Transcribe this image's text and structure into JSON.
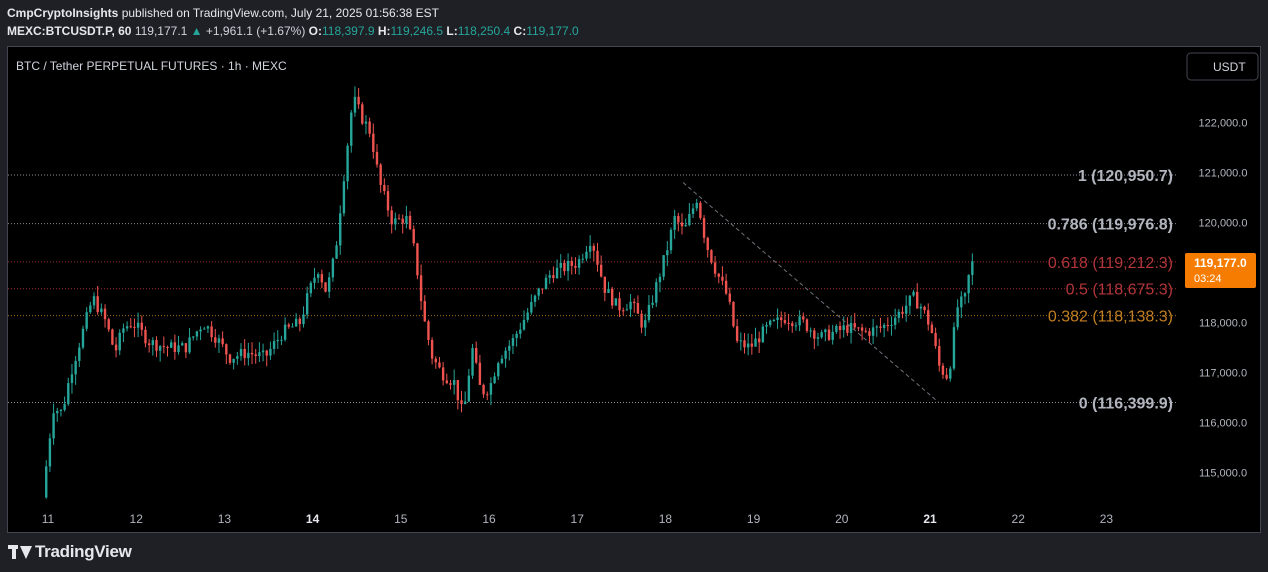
{
  "header": {
    "author": "CmpCryptoInsights",
    "published_text": "published on TradingView.com, July 21, 2025 01:56:38 EST",
    "symbol": "MEXC:BTCUSDT.P, 60",
    "last": "119,177.1",
    "change_arrow": "▲",
    "change": "+1,961.1 (+1.67%)",
    "o_label": "O:",
    "o_value": "118,397.9",
    "h_label": "H:",
    "h_value": "119,246.5",
    "l_label": "L:",
    "l_value": "118,250.4",
    "c_label": "C:",
    "c_value": "119,177.0"
  },
  "chart_title": "BTC / Tether PERPETUAL FUTURES · 1h · MEXC",
  "currency_button": "USDT",
  "price_tag": {
    "value": "119,177.0",
    "countdown": "03:24"
  },
  "footer": {
    "brand": "TradingView"
  },
  "colors": {
    "up": "#26a69a",
    "down": "#ef5350",
    "grey_level": "#b2b5be",
    "red_level": "#b2363b",
    "orange_level": "#c47f22",
    "tag": "#f57c00"
  },
  "chart_data": {
    "type": "candlestick",
    "interval": "1h",
    "y_ticks": [
      {
        "value": 115000,
        "label": "115,000.0"
      },
      {
        "value": 116000,
        "label": "116,000.0"
      },
      {
        "value": 117000,
        "label": "117,000.0"
      },
      {
        "value": 118000,
        "label": "118,000.0"
      },
      {
        "value": 120000,
        "label": "120,000.0"
      },
      {
        "value": 121000,
        "label": "121,000.0"
      },
      {
        "value": 122000,
        "label": "122,000.0"
      }
    ],
    "x_ticks": [
      {
        "day": 11,
        "label": "11",
        "bold": false
      },
      {
        "day": 12,
        "label": "12",
        "bold": false
      },
      {
        "day": 13,
        "label": "13",
        "bold": false
      },
      {
        "day": 14,
        "label": "14",
        "bold": true
      },
      {
        "day": 15,
        "label": "15",
        "bold": false
      },
      {
        "day": 16,
        "label": "16",
        "bold": false
      },
      {
        "day": 17,
        "label": "17",
        "bold": false
      },
      {
        "day": 18,
        "label": "18",
        "bold": false
      },
      {
        "day": 19,
        "label": "19",
        "bold": false
      },
      {
        "day": 20,
        "label": "20",
        "bold": false
      },
      {
        "day": 21,
        "label": "21",
        "bold": true
      },
      {
        "day": 22,
        "label": "22",
        "bold": false
      },
      {
        "day": 23,
        "label": "23",
        "bold": false
      }
    ],
    "fib_levels": [
      {
        "ratio": "1",
        "price": 120950.7,
        "label": "1 (120,950.7)",
        "style": "grey"
      },
      {
        "ratio": "0.786",
        "price": 119976.8,
        "label": "0.786 (119,976.8)",
        "style": "grey"
      },
      {
        "ratio": "0.618",
        "price": 119212.3,
        "label": "0.618 (119,212.3)",
        "style": "red"
      },
      {
        "ratio": "0.5",
        "price": 118675.3,
        "label": "0.5 (118,675.3)",
        "style": "red"
      },
      {
        "ratio": "0.382",
        "price": 118138.3,
        "label": "0.382 (118,138.3)",
        "style": "orange"
      },
      {
        "ratio": "0",
        "price": 116399.9,
        "label": "0 (116,399.9)",
        "style": "grey"
      }
    ],
    "trend_line": {
      "from": {
        "day": 18.2,
        "price": 120800
      },
      "to": {
        "day": 21.1,
        "price": 116400
      }
    },
    "price_path": [
      [
        10.98,
        114500
      ],
      [
        11.1,
        116300
      ],
      [
        11.2,
        116200
      ],
      [
        11.3,
        117000
      ],
      [
        11.45,
        117900
      ],
      [
        11.55,
        118500
      ],
      [
        11.7,
        118000
      ],
      [
        11.8,
        117400
      ],
      [
        11.9,
        117900
      ],
      [
        12.0,
        118000
      ],
      [
        12.2,
        117600
      ],
      [
        12.4,
        117500
      ],
      [
        12.6,
        117500
      ],
      [
        12.8,
        118000
      ],
      [
        12.95,
        117700
      ],
      [
        13.1,
        117300
      ],
      [
        13.3,
        117400
      ],
      [
        13.5,
        117300
      ],
      [
        13.7,
        117800
      ],
      [
        13.9,
        118000
      ],
      [
        14.0,
        118600
      ],
      [
        14.1,
        119100
      ],
      [
        14.2,
        118600
      ],
      [
        14.3,
        119400
      ],
      [
        14.4,
        121000
      ],
      [
        14.5,
        122500
      ],
      [
        14.6,
        122100
      ],
      [
        14.7,
        121800
      ],
      [
        14.8,
        120800
      ],
      [
        14.95,
        120000
      ],
      [
        15.1,
        120100
      ],
      [
        15.2,
        119400
      ],
      [
        15.3,
        118100
      ],
      [
        15.4,
        117300
      ],
      [
        15.5,
        117000
      ],
      [
        15.65,
        116800
      ],
      [
        15.75,
        116100
      ],
      [
        15.85,
        117500
      ],
      [
        15.95,
        116600
      ],
      [
        16.05,
        116700
      ],
      [
        16.15,
        117300
      ],
      [
        16.3,
        117600
      ],
      [
        16.45,
        118100
      ],
      [
        16.6,
        118600
      ],
      [
        16.75,
        119000
      ],
      [
        16.9,
        119100
      ],
      [
        17.05,
        119200
      ],
      [
        17.2,
        119700
      ],
      [
        17.35,
        118700
      ],
      [
        17.5,
        118300
      ],
      [
        17.65,
        118400
      ],
      [
        17.8,
        117900
      ],
      [
        17.95,
        118800
      ],
      [
        18.05,
        119400
      ],
      [
        18.15,
        120100
      ],
      [
        18.25,
        119800
      ],
      [
        18.4,
        120500
      ],
      [
        18.5,
        119600
      ],
      [
        18.6,
        119100
      ],
      [
        18.75,
        118500
      ],
      [
        18.85,
        117600
      ],
      [
        19.0,
        117500
      ],
      [
        19.2,
        117900
      ],
      [
        19.4,
        118100
      ],
      [
        19.6,
        118000
      ],
      [
        19.8,
        117700
      ],
      [
        19.95,
        117800
      ],
      [
        20.1,
        117900
      ],
      [
        20.3,
        117800
      ],
      [
        20.5,
        117900
      ],
      [
        20.7,
        118200
      ],
      [
        20.85,
        118500
      ],
      [
        20.95,
        118300
      ],
      [
        21.05,
        117900
      ],
      [
        21.15,
        117100
      ],
      [
        21.25,
        116900
      ],
      [
        21.35,
        118300
      ],
      [
        21.45,
        118500
      ],
      [
        21.5,
        119177
      ]
    ]
  }
}
